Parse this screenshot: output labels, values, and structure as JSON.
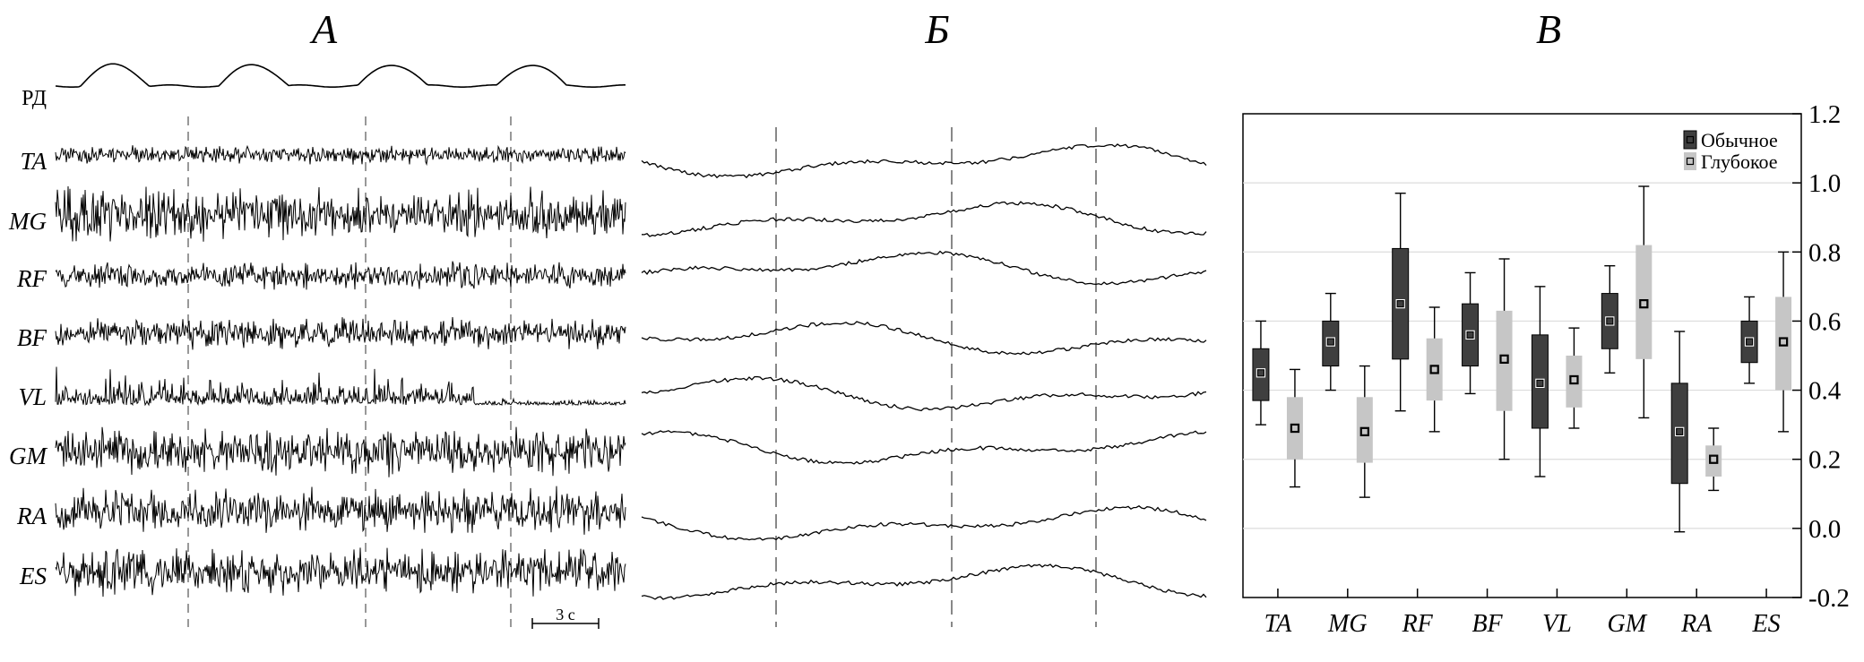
{
  "panels": {
    "a": {
      "title": "А",
      "traces": [
        {
          "label": "РД",
          "italic": false
        },
        {
          "label": "TA",
          "italic": true
        },
        {
          "label": "MG",
          "italic": true
        },
        {
          "label": "RF",
          "italic": true
        },
        {
          "label": "BF",
          "italic": true
        },
        {
          "label": "VL",
          "italic": true
        },
        {
          "label": "GM",
          "italic": true
        },
        {
          "label": "RA",
          "italic": true
        },
        {
          "label": "ES",
          "italic": true
        }
      ],
      "scale_bar": "3 с"
    },
    "b": {
      "title": "Б"
    },
    "c": {
      "title": "В"
    }
  },
  "colors": {
    "ordinary": "#3f3f3f",
    "deep": "#c6c6c6",
    "ink": "#000000",
    "grid": "#dcdcdc"
  },
  "chart_data": {
    "type": "box",
    "categories": [
      "TA",
      "MG",
      "RF",
      "BF",
      "VL",
      "GM",
      "RA",
      "ES"
    ],
    "ylim": [
      -0.2,
      1.2
    ],
    "yticks": [
      "-0.2",
      "0.0",
      "0.2",
      "0.4",
      "0.6",
      "0.8",
      "1.0",
      "1.2"
    ],
    "ytick_values": [
      -0.2,
      0.0,
      0.2,
      0.4,
      0.6,
      0.8,
      1.0,
      1.2
    ],
    "grid": true,
    "legend_position": "top-right",
    "series": [
      {
        "name": "Обычное",
        "stats": [
          {
            "min": 0.3,
            "q1": 0.37,
            "median": 0.45,
            "q3": 0.52,
            "max": 0.6
          },
          {
            "min": 0.4,
            "q1": 0.47,
            "median": 0.54,
            "q3": 0.6,
            "max": 0.68
          },
          {
            "min": 0.34,
            "q1": 0.49,
            "median": 0.65,
            "q3": 0.81,
            "max": 0.97
          },
          {
            "min": 0.39,
            "q1": 0.47,
            "median": 0.56,
            "q3": 0.65,
            "max": 0.74
          },
          {
            "min": 0.15,
            "q1": 0.29,
            "median": 0.42,
            "q3": 0.56,
            "max": 0.7
          },
          {
            "min": 0.45,
            "q1": 0.52,
            "median": 0.6,
            "q3": 0.68,
            "max": 0.76
          },
          {
            "min": -0.01,
            "q1": 0.13,
            "median": 0.28,
            "q3": 0.42,
            "max": 0.57
          },
          {
            "min": 0.42,
            "q1": 0.48,
            "median": 0.54,
            "q3": 0.6,
            "max": 0.67
          }
        ]
      },
      {
        "name": "Глубокое",
        "stats": [
          {
            "min": 0.12,
            "q1": 0.2,
            "median": 0.29,
            "q3": 0.38,
            "max": 0.46
          },
          {
            "min": 0.09,
            "q1": 0.19,
            "median": 0.28,
            "q3": 0.38,
            "max": 0.47
          },
          {
            "min": 0.28,
            "q1": 0.37,
            "median": 0.46,
            "q3": 0.55,
            "max": 0.64
          },
          {
            "min": 0.2,
            "q1": 0.34,
            "median": 0.49,
            "q3": 0.63,
            "max": 0.78
          },
          {
            "min": 0.29,
            "q1": 0.35,
            "median": 0.43,
            "q3": 0.5,
            "max": 0.58
          },
          {
            "min": 0.32,
            "q1": 0.49,
            "median": 0.65,
            "q3": 0.82,
            "max": 0.99
          },
          {
            "min": 0.11,
            "q1": 0.15,
            "median": 0.2,
            "q3": 0.24,
            "max": 0.29
          },
          {
            "min": 0.28,
            "q1": 0.4,
            "median": 0.54,
            "q3": 0.67,
            "max": 0.8
          }
        ]
      }
    ]
  }
}
